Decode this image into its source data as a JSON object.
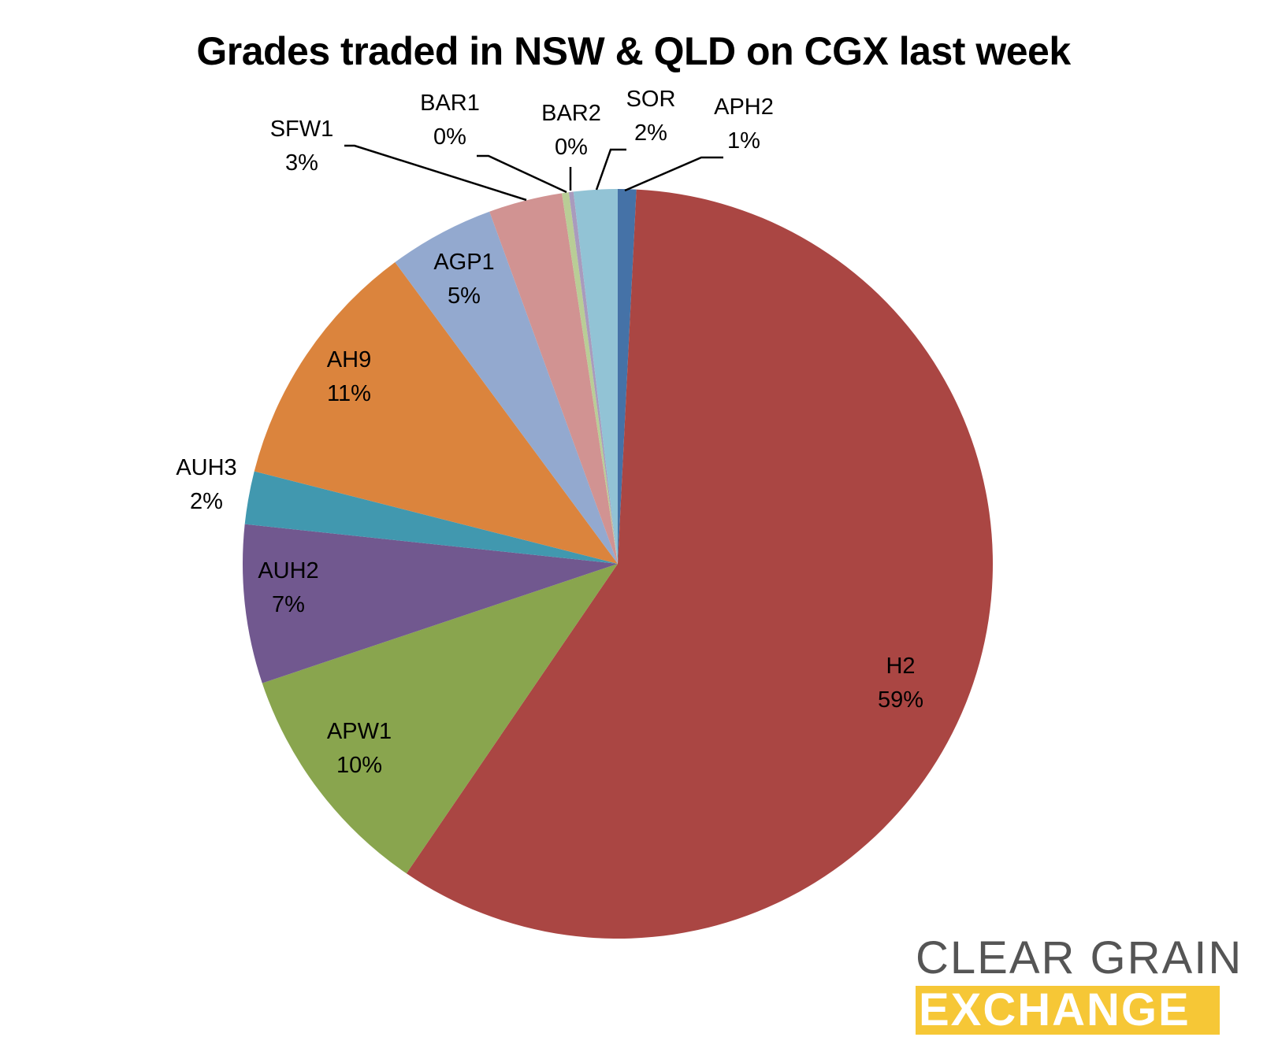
{
  "chart_data": {
    "type": "pie",
    "title": "Grades traded in NSW & QLD on CGX last week",
    "slices": [
      {
        "label": "APH2",
        "percent_label": "1%",
        "value": 0.8,
        "color": "#4572a7"
      },
      {
        "label": "H2",
        "percent_label": "59%",
        "value": 59.2,
        "color": "#aa4643"
      },
      {
        "label": "APW1",
        "percent_label": "10%",
        "value": 10.4,
        "color": "#89a54e"
      },
      {
        "label": "AUH2",
        "percent_label": "7%",
        "value": 6.9,
        "color": "#71588f"
      },
      {
        "label": "AUH3",
        "percent_label": "2%",
        "value": 2.3,
        "color": "#4198af"
      },
      {
        "label": "AH9",
        "percent_label": "11%",
        "value": 11.0,
        "color": "#db843d"
      },
      {
        "label": "AGP1",
        "percent_label": "5%",
        "value": 4.6,
        "color": "#93a9cf"
      },
      {
        "label": "SFW1",
        "percent_label": "3%",
        "value": 3.2,
        "color": "#d19392"
      },
      {
        "label": "BAR1",
        "percent_label": "0%",
        "value": 0.3,
        "color": "#b9cd96"
      },
      {
        "label": "BAR2",
        "percent_label": "0%",
        "value": 0.2,
        "color": "#a99bbd"
      },
      {
        "label": "SOR",
        "percent_label": "2%",
        "value": 1.9,
        "color": "#92c3d5"
      }
    ],
    "start_angle": "12 o'clock",
    "direction": "clockwise",
    "legend": "none"
  },
  "branding": {
    "line1": "CLEAR GRAIN",
    "line2": "EXCHANGE",
    "accent_color": "#f6c736"
  }
}
